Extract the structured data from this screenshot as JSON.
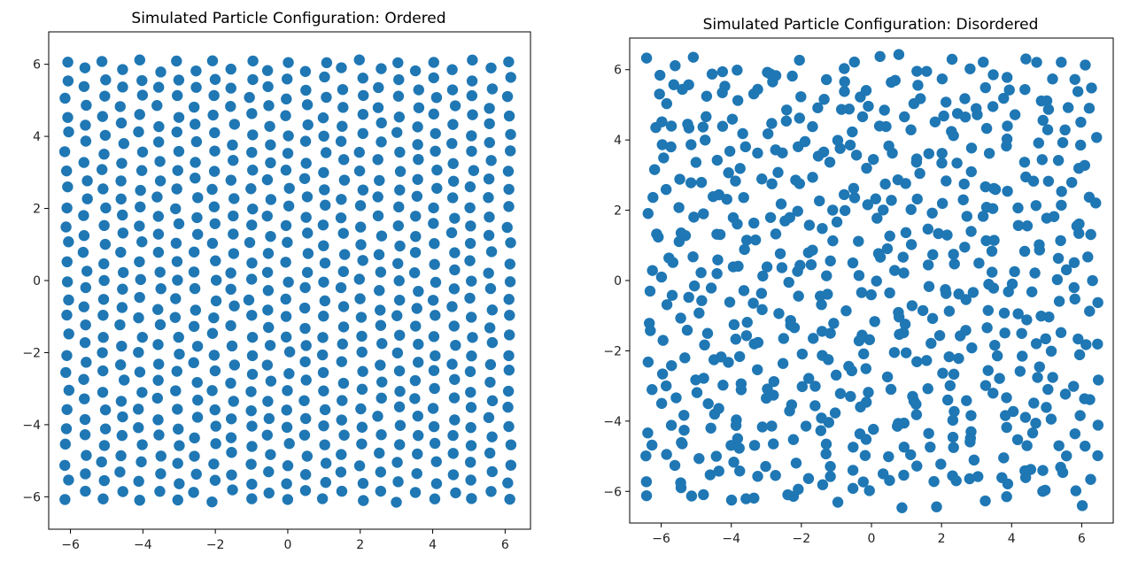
{
  "chart_data": [
    {
      "type": "scatter",
      "title": "Simulated Particle Configuration: Ordered",
      "xlabel": "",
      "ylabel": "",
      "xlim": [
        -6.6,
        6.7
      ],
      "ylim": [
        -6.9,
        6.9
      ],
      "xticks": [
        -6,
        -4,
        -2,
        0,
        2,
        4,
        6
      ],
      "yticks": [
        -6,
        -4,
        -2,
        0,
        2,
        4,
        6
      ],
      "xtick_labels": [
        "−6",
        "−4",
        "−2",
        "0",
        "2",
        "4",
        "6"
      ],
      "ytick_labels": [
        "−6",
        "−4",
        "−2",
        "0",
        "2",
        "4",
        "6"
      ],
      "grid": false,
      "marker_color": "#1f77b4",
      "lattice": {
        "kind": "triangular",
        "rows": 25,
        "cols": 25,
        "x_range": [
          -6.1,
          6.1
        ],
        "y_range": [
          -6.1,
          6.1
        ],
        "jitter": 0.06
      }
    },
    {
      "type": "scatter",
      "title": "Simulated Particle Configuration: Disordered",
      "xlabel": "",
      "ylabel": "",
      "xlim": [
        -6.9,
        6.9
      ],
      "ylim": [
        -6.9,
        6.9
      ],
      "xticks": [
        -6,
        -4,
        -2,
        0,
        2,
        4,
        6
      ],
      "yticks": [
        -6,
        -4,
        -2,
        0,
        2,
        4,
        6
      ],
      "xtick_labels": [
        "−6",
        "−4",
        "−2",
        "0",
        "2",
        "4",
        "6"
      ],
      "ytick_labels": [
        "−6",
        "−4",
        "−2",
        "0",
        "2",
        "4",
        "6"
      ],
      "grid": false,
      "marker_color": "#1f77b4",
      "lattice": {
        "kind": "triangular",
        "rows": 25,
        "cols": 25,
        "x_range": [
          -6.2,
          6.2
        ],
        "y_range": [
          -6.2,
          6.2
        ],
        "jitter": 0.28
      }
    }
  ]
}
